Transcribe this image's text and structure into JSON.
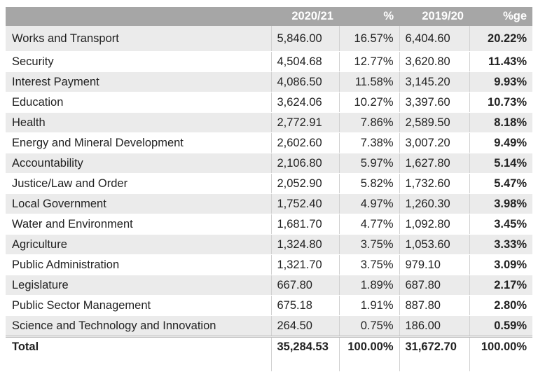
{
  "table": {
    "columns": [
      "2020/21",
      "%",
      "2019/20",
      "%ge"
    ],
    "rows": [
      [
        "Works and Transport",
        "5,846.00",
        "16.57%",
        "6,404.60",
        "20.22%"
      ],
      [
        "Security",
        "4,504.68",
        "12.77%",
        "3,620.80",
        "11.43%"
      ],
      [
        "Interest Payment",
        "4,086.50",
        "11.58%",
        "3,145.20",
        "9.93%"
      ],
      [
        "Education",
        "3,624.06",
        "10.27%",
        "3,397.60",
        "10.73%"
      ],
      [
        "Health",
        "2,772.91",
        "7.86%",
        "2,589.50",
        "8.18%"
      ],
      [
        "Energy and Mineral Development",
        "2,602.60",
        "7.38%",
        "3,007.20",
        "9.49%"
      ],
      [
        "Accountability",
        "2,106.80",
        "5.97%",
        "1,627.80",
        "5.14%"
      ],
      [
        "Justice/Law and Order",
        "2,052.90",
        "5.82%",
        "1,732.60",
        "5.47%"
      ],
      [
        "Local Government",
        "1,752.40",
        "4.97%",
        "1,260.30",
        "3.98%"
      ],
      [
        "Water and Environment",
        "1,681.70",
        "4.77%",
        "1,092.80",
        "3.45%"
      ],
      [
        "Agriculture",
        "1,324.80",
        "3.75%",
        "1,053.60",
        "3.33%"
      ],
      [
        "Public Administration",
        "1,321.70",
        "3.75%",
        "979.10",
        "3.09%"
      ],
      [
        "Legislature",
        "667.80",
        "1.89%",
        "687.80",
        "2.17%"
      ],
      [
        "Public Sector Management",
        "675.18",
        "1.91%",
        "887.80",
        "2.80%"
      ],
      [
        "Science and Technology and Innovation",
        "264.50",
        "0.75%",
        "186.00",
        "0.59%"
      ]
    ],
    "total": [
      "Total",
      "35,284.53",
      "100.00%",
      "31,672.70",
      "100.00%"
    ]
  }
}
